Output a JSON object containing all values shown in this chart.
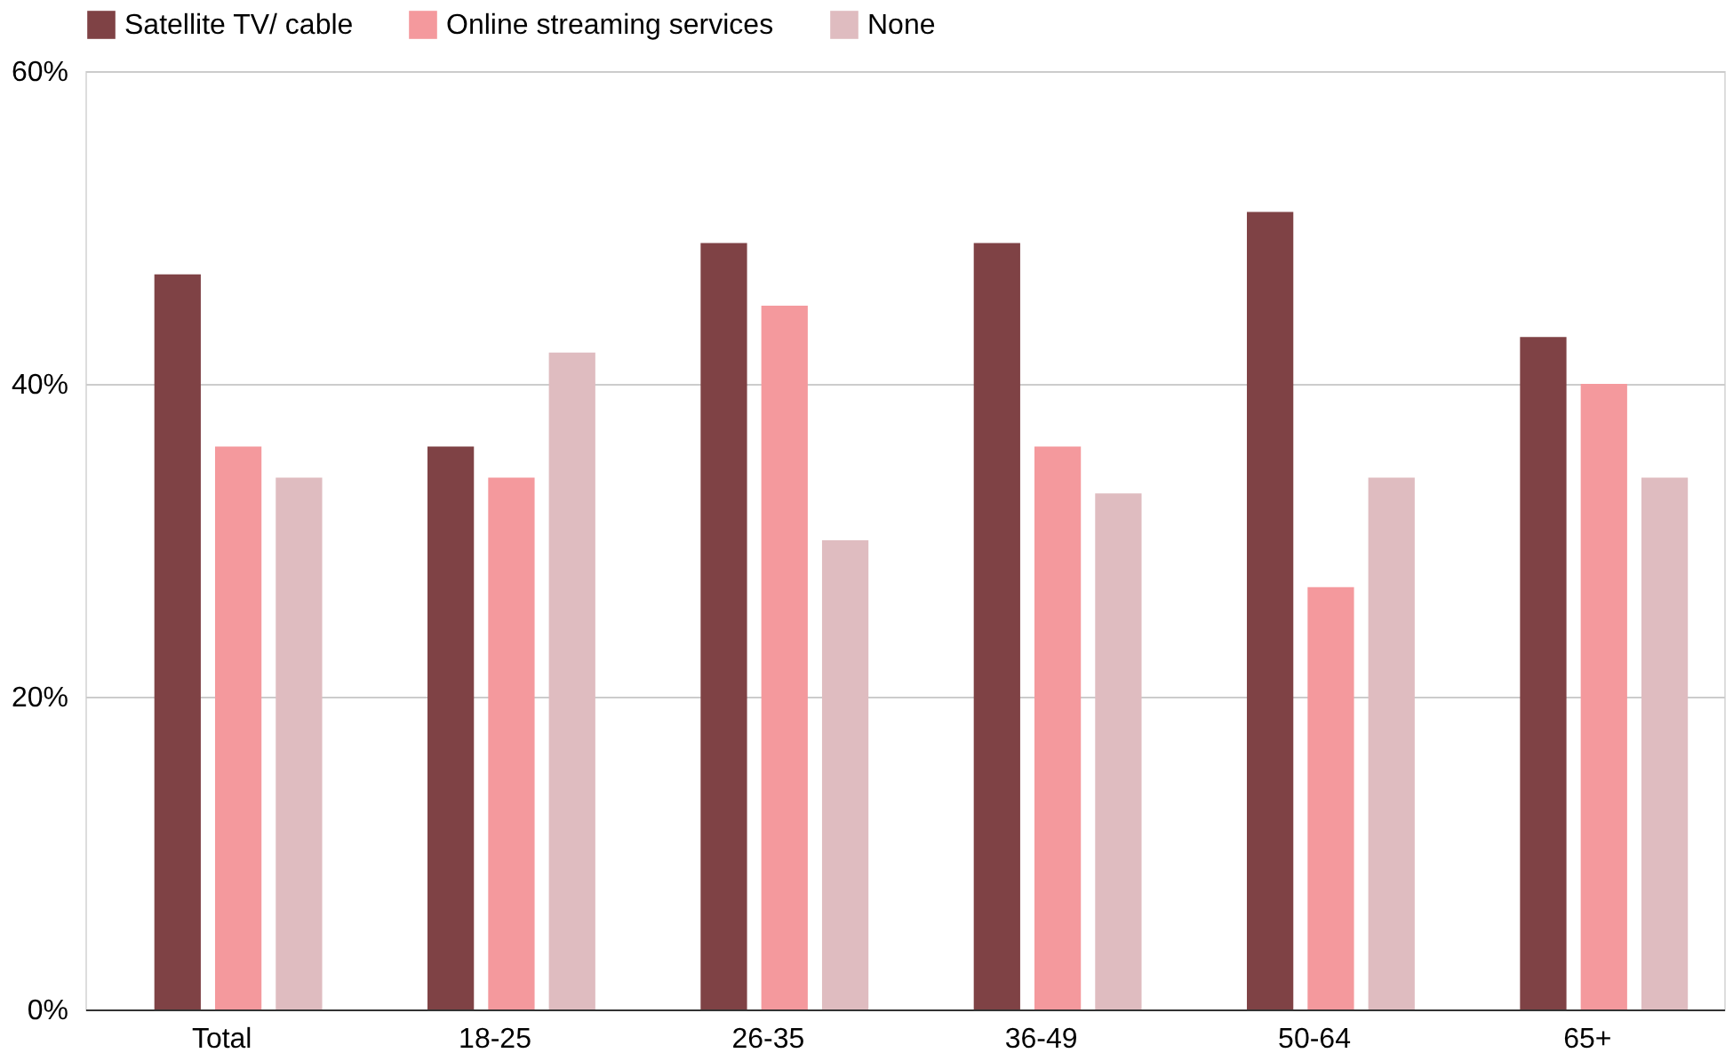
{
  "chart_data": {
    "type": "bar",
    "categories": [
      "Total",
      "18-25",
      "26-35",
      "36-49",
      "50-64",
      "65+"
    ],
    "series": [
      {
        "name": "Satellite TV/ cable",
        "color": "#7f4245",
        "values": [
          47,
          36,
          49,
          49,
          51,
          43
        ]
      },
      {
        "name": "Online streaming services",
        "color": "#f4999d",
        "values": [
          36,
          34,
          45,
          36,
          27,
          40
        ]
      },
      {
        "name": "None",
        "color": "#dfbcc0",
        "values": [
          34,
          42,
          30,
          33,
          34,
          34
        ]
      }
    ],
    "ylim": [
      0,
      60
    ],
    "yticks": [
      {
        "value": 0,
        "label": "0%"
      },
      {
        "value": 20,
        "label": "20%"
      },
      {
        "value": 40,
        "label": "40%"
      },
      {
        "value": 60,
        "label": "60%"
      }
    ],
    "grid": "y",
    "legend": "top left"
  }
}
